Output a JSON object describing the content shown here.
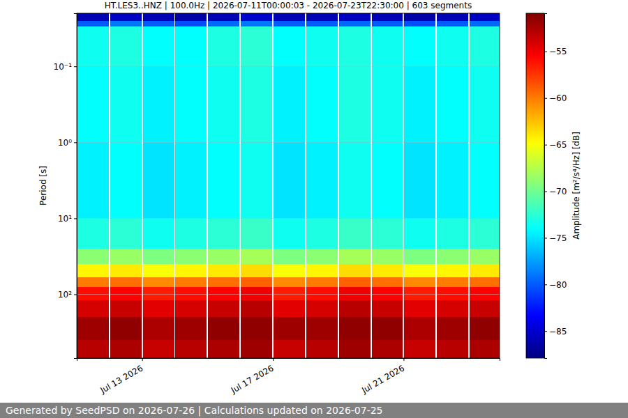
{
  "chart_data": {
    "type": "heatmap",
    "title": "HT.LES3..HNZ | 100.0Hz | 2026-07-11T00:00:03 - 2026-07-23T22:30:00 | 603 segments",
    "y_label": "Period [s]",
    "colorbar_label": "Amplitude [m²/s⁴/Hz] [dB]",
    "annotations": [
      "Generated by SeedPSD on 2026-07-26 | Calculations updated on 2026-07-25"
    ],
    "log": "y",
    "grid": true,
    "xlim": [
      "2026-07-11T00:00:03",
      "2026-07-23T22:30:00"
    ],
    "xticks": [
      {
        "value": "2026-07-13T00:00:00",
        "label": "Jul 13 2026"
      },
      {
        "value": "2026-07-17T00:00:00",
        "label": "Jul 17 2026"
      },
      {
        "value": "2026-07-21T00:00:00",
        "label": "Jul 21 2026"
      }
    ],
    "ylim": [
      0.02,
      690
    ],
    "yticks": [
      {
        "value": 0.1,
        "label": "10⁻¹"
      },
      {
        "value": 1,
        "label": "10⁰"
      },
      {
        "value": 10,
        "label": "10¹"
      },
      {
        "value": 100,
        "label": "10²"
      }
    ],
    "clim": [
      -87.9,
      -50.9
    ],
    "cticks": [
      {
        "value": -55,
        "label": "−55"
      },
      {
        "value": -60,
        "label": "−60"
      },
      {
        "value": -65,
        "label": "−65"
      },
      {
        "value": -70,
        "label": "−70"
      },
      {
        "value": -75,
        "label": "−75"
      },
      {
        "value": -80,
        "label": "−80"
      },
      {
        "value": -85,
        "label": "−85"
      }
    ],
    "x": [
      "2026-07-11T00:00:03",
      "2026-07-11T23:30:00",
      "2026-07-12T00:30:00",
      "2026-07-12T23:30:00",
      "2026-07-13T00:30:00",
      "2026-07-13T23:30:00",
      "2026-07-14T00:30:00",
      "2026-07-14T23:30:00",
      "2026-07-15T00:30:00",
      "2026-07-15T23:30:00",
      "2026-07-16T00:30:00",
      "2026-07-16T23:30:00",
      "2026-07-17T00:30:00",
      "2026-07-17T23:30:00",
      "2026-07-18T00:30:00",
      "2026-07-18T23:30:00",
      "2026-07-19T00:30:00",
      "2026-07-19T23:30:00",
      "2026-07-20T00:30:00",
      "2026-07-20T23:30:00",
      "2026-07-21T00:30:00",
      "2026-07-21T23:30:00",
      "2026-07-22T00:30:00",
      "2026-07-22T23:30:00",
      "2026-07-23T00:30:00",
      "2026-07-23T22:30:00"
    ],
    "y": [
      0.02,
      0.025,
      0.03,
      0.1,
      1,
      10,
      25,
      40,
      60,
      80,
      120,
      200,
      400,
      690
    ],
    "cells": [
      [
        -86,
        null,
        -85.5,
        null,
        -86,
        null,
        -86.5,
        null,
        -86,
        null,
        -85,
        null,
        -86,
        null,
        -86,
        null,
        -85.5,
        null,
        -86,
        null,
        -86.5,
        null,
        -86,
        null,
        -85.5
      ],
      [
        -80,
        null,
        -79,
        null,
        -80,
        null,
        -80.5,
        null,
        -79.5,
        null,
        -79,
        null,
        -80,
        null,
        -80,
        null,
        -79.5,
        null,
        -80,
        null,
        -80.5,
        null,
        -80,
        null,
        -79.5
      ],
      [
        -73.5,
        null,
        -73,
        null,
        -74,
        null,
        -74,
        null,
        -73,
        null,
        -72.5,
        null,
        -74,
        null,
        -73.5,
        null,
        -73,
        null,
        -73.5,
        null,
        -74,
        null,
        -73.5,
        null,
        -73
      ],
      [
        -74,
        null,
        -73.5,
        null,
        -74.5,
        null,
        -74,
        null,
        -73.5,
        null,
        -73,
        null,
        -74.5,
        null,
        -74,
        null,
        -73,
        null,
        -73.5,
        null,
        -74.5,
        null,
        -74,
        null,
        -73.5
      ],
      [
        -74.5,
        null,
        -74,
        null,
        -75,
        null,
        -74.5,
        null,
        -74,
        null,
        -73.5,
        null,
        -75,
        null,
        -74.5,
        null,
        -73.5,
        null,
        -74,
        null,
        -75,
        null,
        -74.5,
        null,
        -74
      ],
      [
        -73,
        null,
        -72.5,
        null,
        -73.5,
        null,
        -73,
        null,
        -72.5,
        null,
        -72,
        null,
        -73.5,
        null,
        -73,
        null,
        -72,
        null,
        -72.5,
        null,
        -73.5,
        null,
        -73,
        null,
        -72.5
      ],
      [
        -69,
        null,
        -68.5,
        null,
        -69.5,
        null,
        -69,
        null,
        -68.5,
        null,
        -68,
        null,
        -69.5,
        null,
        -69,
        null,
        -68,
        null,
        -68.5,
        null,
        -69.5,
        null,
        -69,
        null,
        -68.5
      ],
      [
        -64.5,
        null,
        -64,
        null,
        -65,
        null,
        -64.5,
        null,
        -64,
        null,
        -63.5,
        null,
        -65,
        null,
        -64.5,
        null,
        -63.5,
        null,
        -64,
        null,
        -65,
        null,
        -64.5,
        null,
        -64
      ],
      [
        -60,
        null,
        -59.5,
        null,
        -60.5,
        null,
        -60,
        null,
        -59.5,
        null,
        -59,
        null,
        -60.5,
        null,
        -60,
        null,
        -59,
        null,
        -59.5,
        null,
        -60.5,
        null,
        -60,
        null,
        -59.5
      ],
      [
        -56,
        null,
        -55.5,
        null,
        -56.5,
        null,
        -56,
        null,
        -55.5,
        null,
        -55,
        null,
        -56.5,
        null,
        -56,
        null,
        -55,
        null,
        -55.5,
        null,
        -56.5,
        null,
        -56,
        null,
        -55.5
      ],
      [
        -54,
        null,
        -53.5,
        null,
        -54.5,
        null,
        -54,
        null,
        -53.5,
        null,
        -53,
        null,
        -54.5,
        null,
        -54,
        null,
        -53,
        null,
        -53.5,
        null,
        -54.5,
        null,
        -54,
        null,
        -53.5
      ],
      [
        -52,
        null,
        -51.5,
        null,
        -52.5,
        null,
        -52,
        null,
        -51.5,
        null,
        -51.5,
        null,
        -52,
        null,
        -52,
        null,
        -51.5,
        null,
        -51.5,
        null,
        -52.5,
        null,
        -52,
        null,
        -51.5
      ],
      [
        -53,
        null,
        -52.5,
        null,
        -53.5,
        null,
        -53,
        null,
        -52.5,
        null,
        -52,
        null,
        -53.5,
        null,
        -53,
        null,
        -52,
        null,
        -52.5,
        null,
        -53.5,
        null,
        -53,
        null,
        -52.5
      ]
    ]
  }
}
